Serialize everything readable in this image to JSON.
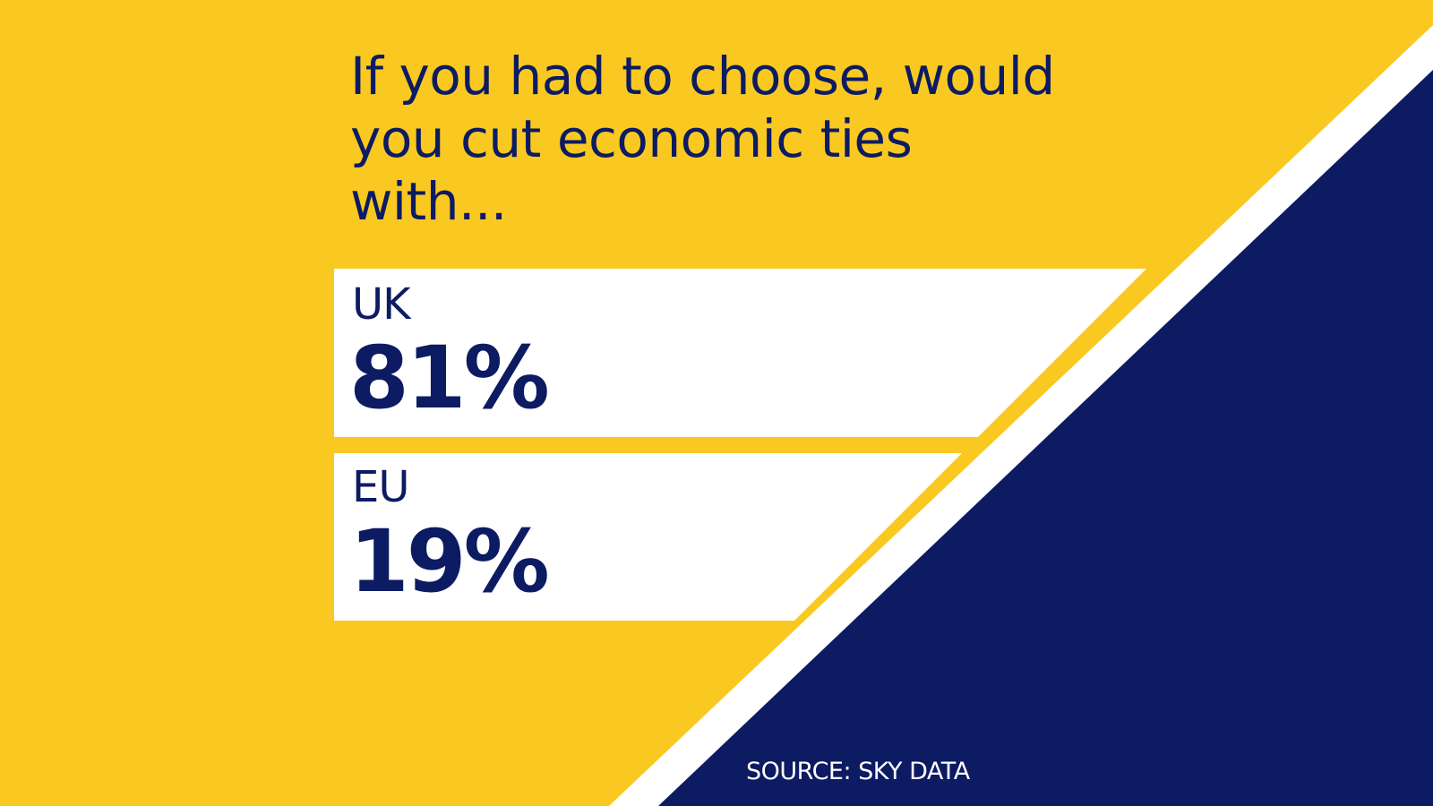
{
  "colors": {
    "yellow": "#F9C921",
    "navy": "#0D1B63",
    "white": "#FFFFFF"
  },
  "question": "If you had to choose, would you cut economic ties with...",
  "chart_data": {
    "type": "bar",
    "title": "If you had to choose, would you cut economic ties with...",
    "categories": [
      "UK",
      "EU"
    ],
    "values": [
      81,
      19
    ],
    "display_values": [
      "81%",
      "19%"
    ],
    "xlabel": "",
    "ylabel": "",
    "grid": false,
    "legend": "none"
  },
  "source": "SOURCE: SKY DATA"
}
